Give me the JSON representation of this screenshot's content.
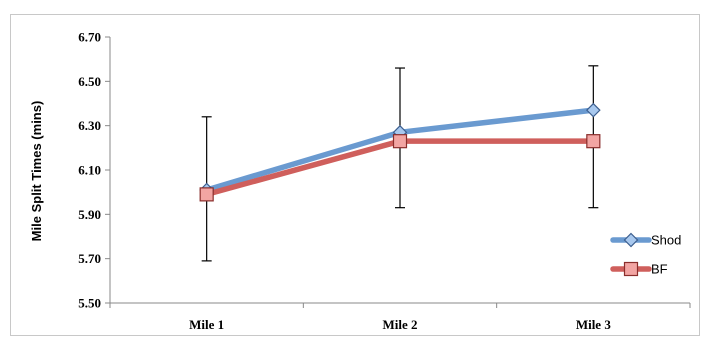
{
  "chart_data": {
    "type": "line",
    "title": "",
    "xlabel": "",
    "ylabel": "Mile Split Times (mins)",
    "categories": [
      "Mile 1",
      "Mile 2",
      "Mile 3"
    ],
    "ylim": [
      5.5,
      6.7
    ],
    "yticks": [
      "5.50",
      "5.70",
      "5.90",
      "6.10",
      "6.30",
      "6.50",
      "6.70"
    ],
    "grid": false,
    "legend_position": "right",
    "series": [
      {
        "name": "Shod",
        "values": [
          6.01,
          6.27,
          6.37
        ],
        "error_low": [
          5.69,
          5.93,
          5.93
        ],
        "error_high": [
          6.34,
          6.56,
          6.57
        ],
        "color": "#6a9ad0",
        "marker": "diamond",
        "marker_fill": "#a8c8ee",
        "marker_stroke": "#3d5f8f"
      },
      {
        "name": "BF",
        "values": [
          5.99,
          6.23,
          6.23
        ],
        "color": "#cf5f5c",
        "marker": "square",
        "marker_fill": "#f2a5a3",
        "marker_stroke": "#8a2e2c"
      }
    ]
  }
}
